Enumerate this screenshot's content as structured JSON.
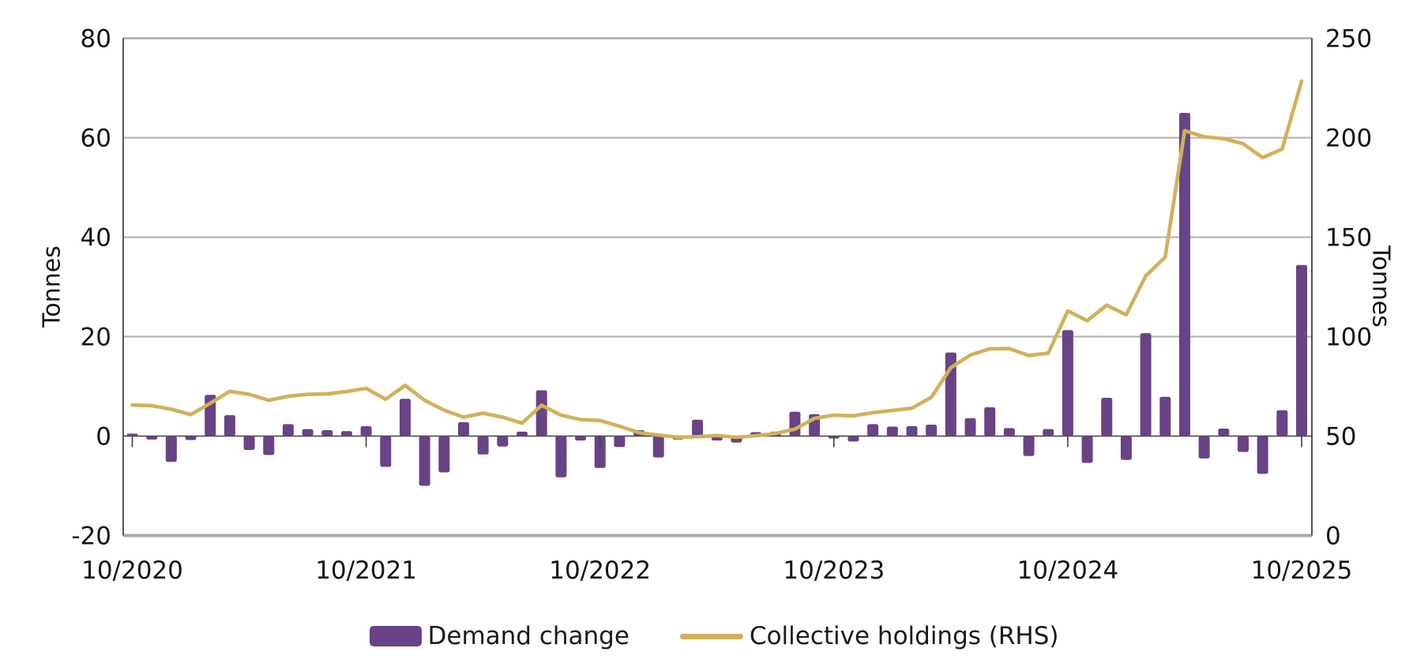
{
  "chart_data": {
    "type": "bar+line combo",
    "title": "",
    "x_axis": {
      "tick_labels": [
        "10/2020",
        "10/2021",
        "10/2022",
        "10/2023",
        "10/2024",
        "10/2025"
      ],
      "tick_month_indices": [
        0,
        12,
        24,
        36,
        48,
        60
      ],
      "months_total": 61,
      "frequency": "monthly"
    },
    "left_axis": {
      "title": "Tonnes",
      "ticks": [
        80,
        60,
        40,
        20,
        0,
        -20
      ],
      "range": [
        -20,
        80
      ]
    },
    "right_axis": {
      "title": "Tonnes",
      "ticks": [
        250,
        200,
        150,
        100,
        50,
        0
      ],
      "range": [
        0,
        250
      ]
    },
    "grid": "horizontal gridlines on, zero axis line dark",
    "legend_position": "bottom center",
    "series": [
      {
        "name": "Demand change",
        "type": "bar",
        "axis": "left",
        "color": "#684386",
        "values": [
          0.5,
          -0.7,
          -5.2,
          -0.8,
          8.3,
          4.2,
          -2.8,
          -3.8,
          2.4,
          1.4,
          1.2,
          1.0,
          2.0,
          -6.2,
          7.5,
          -10.0,
          -7.3,
          2.8,
          -3.7,
          -2.1,
          0.9,
          9.2,
          -8.3,
          -0.9,
          -6.4,
          -2.2,
          1.2,
          -4.3,
          -0.7,
          3.3,
          -0.9,
          -1.3,
          0.8,
          0.9,
          4.9,
          4.4,
          -0.5,
          -1.1,
          2.4,
          1.9,
          2.0,
          2.3,
          16.8,
          3.6,
          5.8,
          1.6,
          -4.0,
          1.4,
          21.3,
          -5.4,
          7.7,
          -4.8,
          20.7,
          7.9,
          65.0,
          -4.5,
          1.5,
          -3.2,
          -7.6,
          5.2,
          34.4
        ]
      },
      {
        "name": "Collective holdings (RHS)",
        "type": "line",
        "axis": "right",
        "color": "#d2b05a",
        "values": [
          65.6,
          65.3,
          63.5,
          60.8,
          66.5,
          72.5,
          71.0,
          68.0,
          70.0,
          71.0,
          71.2,
          72.4,
          74.0,
          68.5,
          75.5,
          68.0,
          63.0,
          59.5,
          61.5,
          59.5,
          56.5,
          65.5,
          60.5,
          58.3,
          57.8,
          55.0,
          51.7,
          50.5,
          49.4,
          49.7,
          50.3,
          49.4,
          50.2,
          51.3,
          53.5,
          58.9,
          60.5,
          60.2,
          61.8,
          62.9,
          64.0,
          69.5,
          84.4,
          90.7,
          93.9,
          94.0,
          90.5,
          91.7,
          112.9,
          108.0,
          115.8,
          111.0,
          130.5,
          140.0,
          203.5,
          200.5,
          199.5,
          197.0,
          190.0,
          194.3,
          228.5
        ]
      }
    ]
  },
  "colors": {
    "bar": "#684386",
    "line": "#d2b05a",
    "gridline": "#b7b7b7",
    "frame": "#a9a9a9",
    "zero_line": "#3f3f3f",
    "axis_line": "#404040",
    "text": "#141414"
  }
}
